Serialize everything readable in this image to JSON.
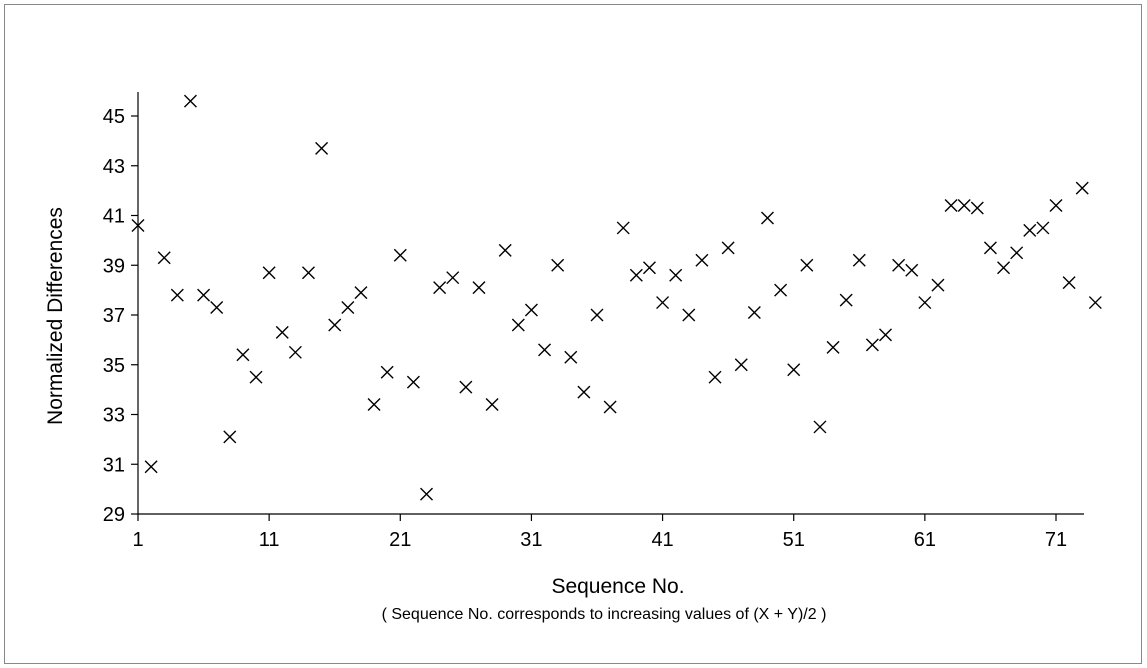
{
  "chart_data": {
    "type": "scatter",
    "xlabel": "Sequence No.",
    "note": "( Sequence No. corresponds to increasing values of (X + Y)/2 )",
    "ylabel": "Normalized Differences",
    "xlim": [
      1,
      74
    ],
    "ylim": [
      29,
      46
    ],
    "xticks": [
      1,
      11,
      21,
      31,
      41,
      51,
      61,
      71
    ],
    "yticks": [
      29,
      31,
      33,
      35,
      37,
      39,
      41,
      43,
      45
    ],
    "marker": "x",
    "grid": false,
    "x": [
      1,
      2,
      3,
      4,
      5,
      6,
      7,
      8,
      9,
      10,
      11,
      12,
      13,
      14,
      15,
      16,
      17,
      18,
      19,
      20,
      21,
      22,
      23,
      24,
      25,
      26,
      27,
      28,
      29,
      30,
      31,
      32,
      33,
      34,
      35,
      36,
      37,
      38,
      39,
      40,
      41,
      42,
      43,
      44,
      45,
      46,
      47,
      48,
      49,
      50,
      51,
      52,
      53,
      54,
      55,
      56,
      57,
      58,
      59,
      60,
      61,
      62,
      63,
      64,
      65,
      66,
      67,
      68,
      69,
      70,
      71,
      72,
      73,
      74
    ],
    "y": [
      40.6,
      30.9,
      39.3,
      37.8,
      45.6,
      37.8,
      37.3,
      32.1,
      35.4,
      34.5,
      38.7,
      36.3,
      35.5,
      38.7,
      43.7,
      36.6,
      37.3,
      37.9,
      33.4,
      34.7,
      39.4,
      34.3,
      29.8,
      38.1,
      38.5,
      34.1,
      38.1,
      33.4,
      39.6,
      36.6,
      37.2,
      35.6,
      39.0,
      35.3,
      33.9,
      37.0,
      33.3,
      40.5,
      38.6,
      38.9,
      37.5,
      38.6,
      37.0,
      39.2,
      34.5,
      39.7,
      35.0,
      37.1,
      40.9,
      38.0,
      34.8,
      39.0,
      32.5,
      35.7,
      37.6,
      39.2,
      35.8,
      36.2,
      39.0,
      38.8,
      37.5,
      38.2,
      41.4,
      41.4,
      41.3,
      39.7,
      38.9,
      39.5,
      40.4,
      40.5,
      41.4,
      38.3,
      42.1,
      37.5
    ]
  }
}
